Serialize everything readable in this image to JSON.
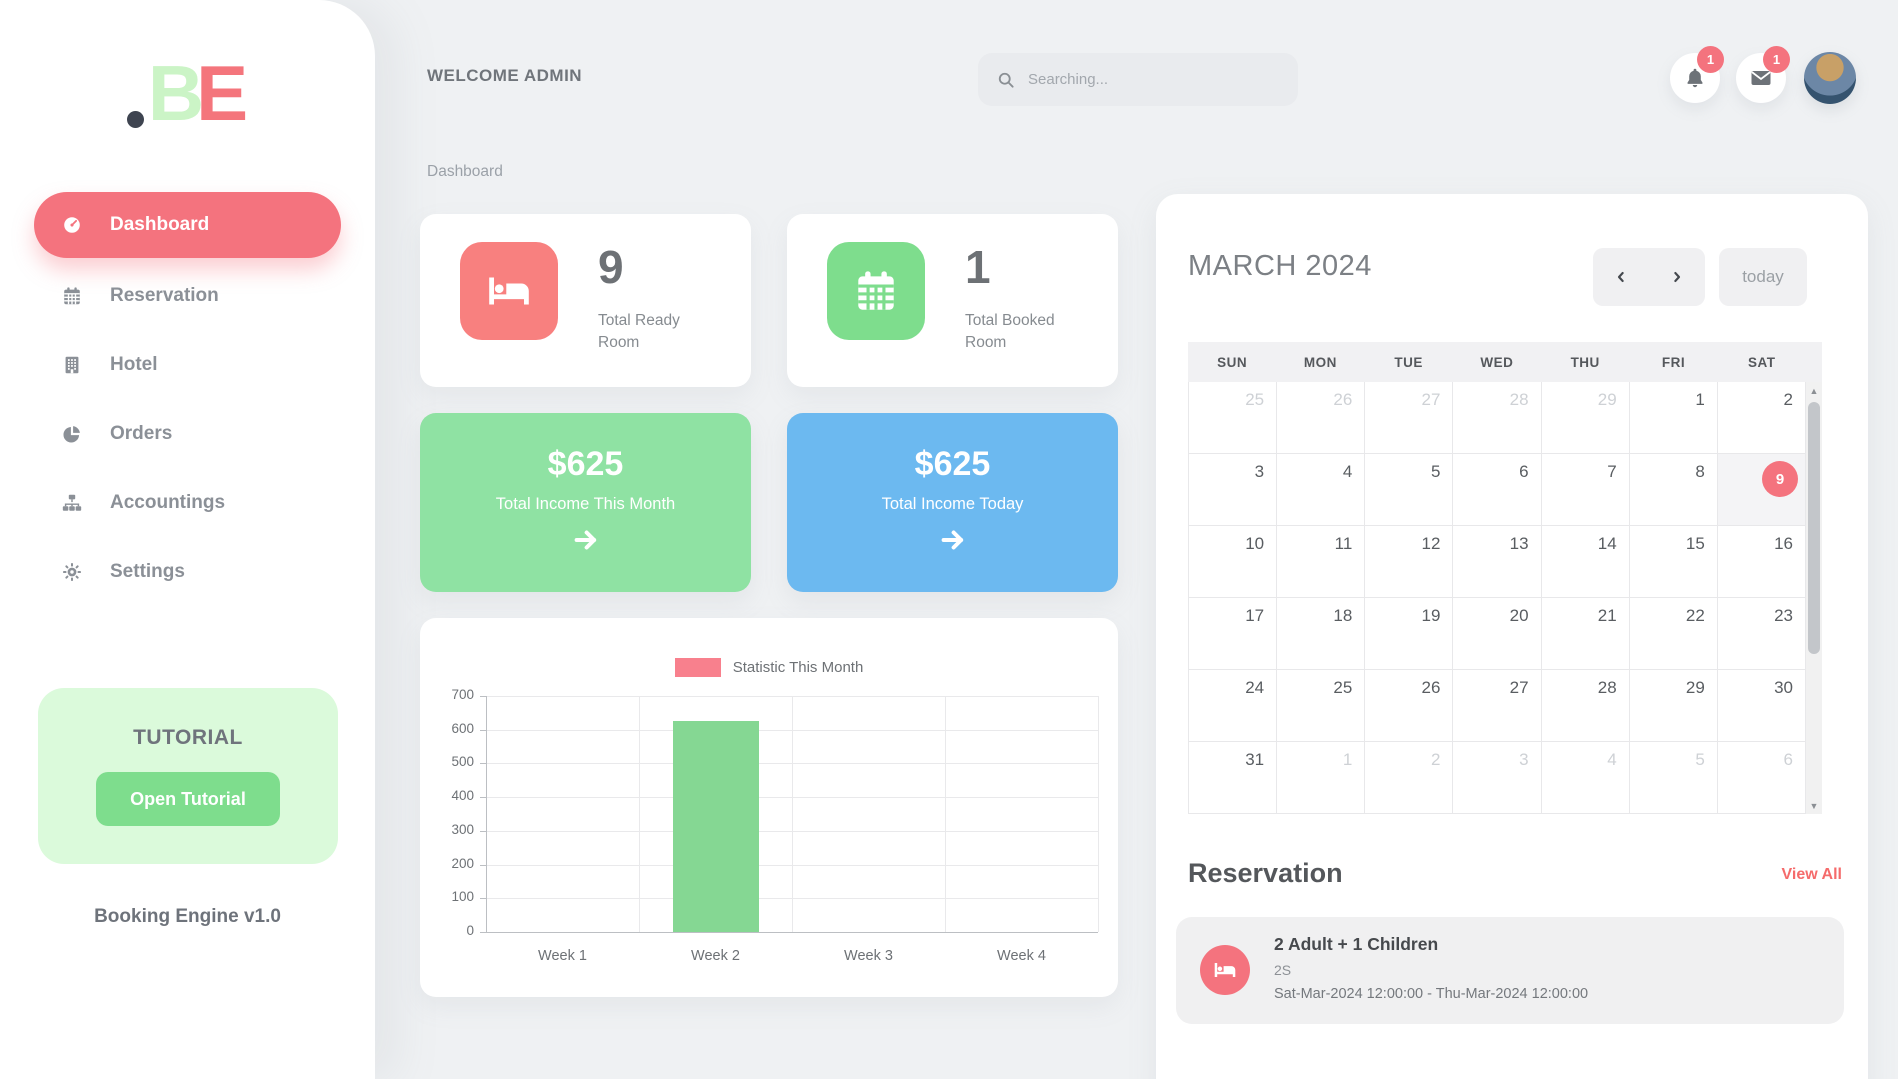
{
  "app": {
    "logo_b": "B",
    "logo_e": "E",
    "version_label": "Booking Engine v1.0"
  },
  "topbar": {
    "welcome": "WELCOME ADMIN",
    "search_placeholder": "Searching...",
    "notification_count": "1",
    "message_count": "1"
  },
  "breadcrumb": "Dashboard",
  "sidebar": {
    "items": [
      {
        "label": "Dashboard",
        "icon": "dashboard-icon",
        "active": true
      },
      {
        "label": "Reservation",
        "icon": "calendar-icon",
        "active": false
      },
      {
        "label": "Hotel",
        "icon": "building-icon",
        "active": false
      },
      {
        "label": "Orders",
        "icon": "pie-chart-icon",
        "active": false
      },
      {
        "label": "Accountings",
        "icon": "sitemap-icon",
        "active": false
      },
      {
        "label": "Settings",
        "icon": "gear-icon",
        "active": false
      }
    ],
    "tutorial": {
      "title": "TUTORIAL",
      "button_label": "Open Tutorial"
    }
  },
  "stats": [
    {
      "value": "9",
      "label": "Total Ready Room",
      "icon": "bed-icon",
      "icon_bg": "#f8807f"
    },
    {
      "value": "1",
      "label": "Total Booked Room",
      "icon": "calendar-icon",
      "icon_bg": "#7edd8d"
    }
  ],
  "income_cards": [
    {
      "amount": "$625",
      "label": "Total Income This Month",
      "bg": "#8fe2a3",
      "icon": "arrow-right-icon"
    },
    {
      "amount": "$625",
      "label": "Total Income Today",
      "bg": "#6cb9f0",
      "icon": "arrow-right-icon"
    }
  ],
  "chart_data": {
    "type": "bar",
    "legend": "Statistic This Month",
    "legend_position": "top-center",
    "legend_swatch_color": "#f8808d",
    "bar_color": "#85d793",
    "categories": [
      "Week 1",
      "Week 2",
      "Week 3",
      "Week 4"
    ],
    "values": [
      0,
      625,
      0,
      0
    ],
    "ylim": [
      0,
      700
    ],
    "ytick_step": 100,
    "grid": true
  },
  "calendar": {
    "title": "MARCH 2024",
    "today_button": "today",
    "day_headers": [
      "SUN",
      "MON",
      "TUE",
      "WED",
      "THU",
      "FRI",
      "SAT"
    ],
    "today_date": "9",
    "weeks": [
      [
        {
          "day": "25",
          "muted": true
        },
        {
          "day": "26",
          "muted": true
        },
        {
          "day": "27",
          "muted": true
        },
        {
          "day": "28",
          "muted": true
        },
        {
          "day": "29",
          "muted": true
        },
        {
          "day": "1",
          "muted": false
        },
        {
          "day": "2",
          "muted": false
        }
      ],
      [
        {
          "day": "3",
          "muted": false
        },
        {
          "day": "4",
          "muted": false
        },
        {
          "day": "5",
          "muted": false
        },
        {
          "day": "6",
          "muted": false
        },
        {
          "day": "7",
          "muted": false
        },
        {
          "day": "8",
          "muted": false
        },
        {
          "day": "9",
          "muted": false,
          "today": true
        }
      ],
      [
        {
          "day": "10",
          "muted": false
        },
        {
          "day": "11",
          "muted": false
        },
        {
          "day": "12",
          "muted": false
        },
        {
          "day": "13",
          "muted": false
        },
        {
          "day": "14",
          "muted": false
        },
        {
          "day": "15",
          "muted": false
        },
        {
          "day": "16",
          "muted": false
        }
      ],
      [
        {
          "day": "17",
          "muted": false
        },
        {
          "day": "18",
          "muted": false
        },
        {
          "day": "19",
          "muted": false
        },
        {
          "day": "20",
          "muted": false
        },
        {
          "day": "21",
          "muted": false
        },
        {
          "day": "22",
          "muted": false
        },
        {
          "day": "23",
          "muted": false
        }
      ],
      [
        {
          "day": "24",
          "muted": false
        },
        {
          "day": "25",
          "muted": false
        },
        {
          "day": "26",
          "muted": false
        },
        {
          "day": "27",
          "muted": false
        },
        {
          "day": "28",
          "muted": false
        },
        {
          "day": "29",
          "muted": false
        },
        {
          "day": "30",
          "muted": false
        }
      ],
      [
        {
          "day": "31",
          "muted": false
        },
        {
          "day": "1",
          "muted": true
        },
        {
          "day": "2",
          "muted": true
        },
        {
          "day": "3",
          "muted": true
        },
        {
          "day": "4",
          "muted": true
        },
        {
          "day": "5",
          "muted": true
        },
        {
          "day": "6",
          "muted": true
        }
      ]
    ]
  },
  "reservation": {
    "heading": "Reservation",
    "view_all_label": "View All",
    "items": [
      {
        "title": "2 Adult + 1 Children",
        "room": "2S",
        "date_range": "Sat-Mar-2024 12:00:00 - Thu-Mar-2024 12:00:00",
        "icon": "bed-icon"
      }
    ]
  },
  "colors": {
    "accent_red": "#f4737e",
    "accent_green": "#7edd8d",
    "accent_blue": "#6cb9f0",
    "income_green": "#8fe2a3",
    "badge_red": "#f4737e",
    "bar_green": "#85d793",
    "legend_red": "#f8808d"
  }
}
